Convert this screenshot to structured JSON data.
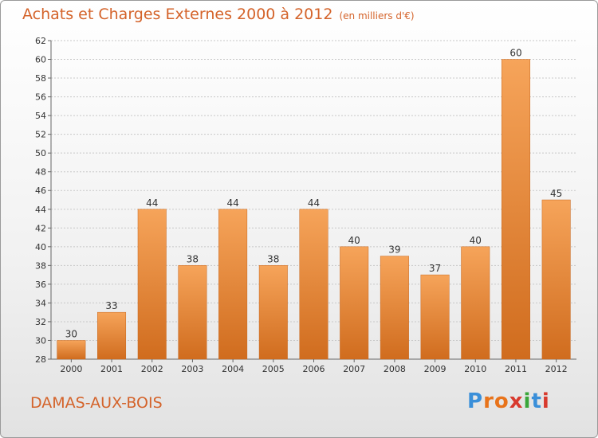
{
  "header": {
    "title": "Achats et Charges Externes 2000 à 2012",
    "subtitle": "(en milliers d'€)"
  },
  "footer": {
    "town": "DAMAS-AUX-BOIS",
    "logo_text": "Proxiti",
    "logo_colors": [
      "#3a8fd9",
      "#e8731a",
      "#e8731a",
      "#d83a2e",
      "#3aa63a",
      "#3a8fd9",
      "#d83a2e"
    ]
  },
  "colors": {
    "bar_light": "#f6a45a",
    "bar_dark": "#d06c1e",
    "grid": "#c8c8c8"
  },
  "chart_data": {
    "type": "bar",
    "categories": [
      "2000",
      "2001",
      "2002",
      "2003",
      "2004",
      "2005",
      "2006",
      "2007",
      "2008",
      "2009",
      "2010",
      "2011",
      "2012"
    ],
    "values": [
      30,
      33,
      44,
      38,
      44,
      38,
      44,
      40,
      39,
      37,
      40,
      60,
      45
    ],
    "ylim": [
      28,
      62
    ],
    "yticks": [
      28,
      30,
      32,
      34,
      36,
      38,
      40,
      42,
      44,
      46,
      48,
      50,
      52,
      54,
      56,
      58,
      60,
      62
    ],
    "grid": true,
    "xlabel": "",
    "ylabel": ""
  }
}
